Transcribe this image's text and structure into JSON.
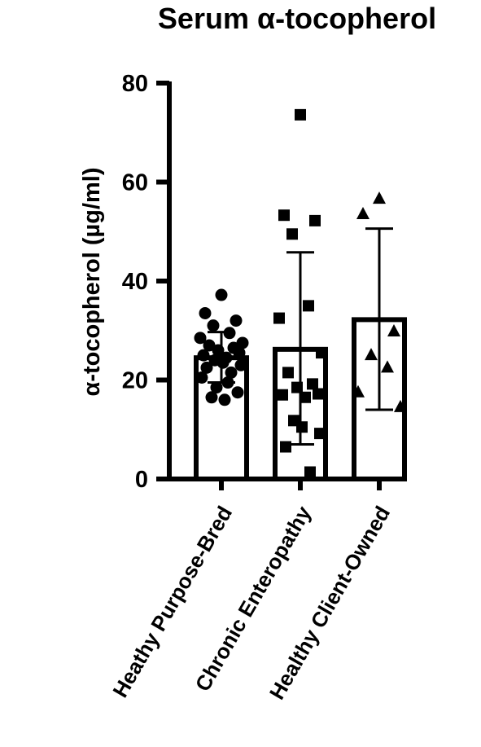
{
  "chart_data": {
    "type": "bar",
    "title": "Serum α-tocopherol",
    "ylabel": "α-tocopherol (µg/ml)",
    "xlabel": "",
    "ylim": [
      0,
      80
    ],
    "yticks": [
      "0",
      "20",
      "40",
      "60",
      "80"
    ],
    "categories": [
      "Heathy Purpose-Bred",
      "Chronic Enteropathy",
      "Healthy Client-Owned"
    ],
    "bars": [
      {
        "category": "Heathy Purpose-Bred",
        "mean": 24.5,
        "sd_low": 19.5,
        "sd_high": 29.7,
        "marker": "circle",
        "points": [
          37.2,
          33.5,
          32.0,
          31.0,
          29.5,
          28.5,
          27.5,
          27.0,
          26.5,
          26.0,
          25.5,
          25.0,
          24.5,
          24.0,
          23.5,
          23.0,
          22.5,
          21.5,
          20.5,
          19.5,
          18.5,
          17.5,
          16.5,
          16.0
        ]
      },
      {
        "category": "Chronic Enteropathy",
        "mean": 26.2,
        "sd_low": 7.0,
        "sd_high": 45.8,
        "marker": "square",
        "points": [
          73.6,
          53.3,
          52.2,
          49.5,
          35.0,
          32.5,
          25.5,
          21.5,
          19.2,
          18.5,
          17.2,
          17.0,
          16.5,
          11.8,
          10.5,
          9.2,
          6.5,
          1.4
        ]
      },
      {
        "category": "Healthy Client-Owned",
        "mean": 32.2,
        "sd_low": 14.0,
        "sd_high": 50.6,
        "marker": "triangle",
        "points": [
          56.6,
          53.5,
          29.8,
          25.0,
          22.5,
          17.5,
          14.5
        ]
      }
    ]
  }
}
